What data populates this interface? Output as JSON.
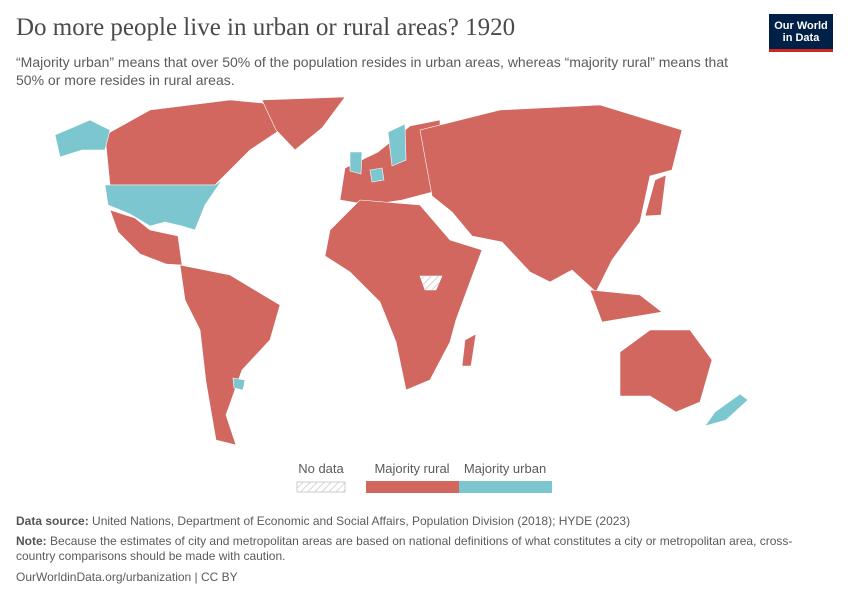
{
  "header": {
    "title": "Do more people live in urban or rural areas? 1920",
    "subtitle": "“Majority urban” means that over 50% of the population resides in urban areas, whereas “majority rural” means that 50% or more resides in rural areas.",
    "logo": [
      "Our World",
      "in Data"
    ]
  },
  "legend": {
    "items": [
      {
        "label": "No data"
      },
      {
        "label": "Majority rural",
        "color": "#d1675e"
      },
      {
        "label": "Majority urban",
        "color": "#7cc7cf"
      }
    ]
  },
  "footer": {
    "source_label": "Data source:",
    "source": "United Nations, Department of Economic and Social Affairs, Population Division (2018); HYDE (2023)",
    "note_label": "Note:",
    "note": "Because the estimates of city and metropolitan areas are based on national definitions of what constitutes a city or metropolitan area, cross-country comparisons should be made with caution.",
    "url": "OurWorldinData.org/urbanization | CC BY"
  }
}
